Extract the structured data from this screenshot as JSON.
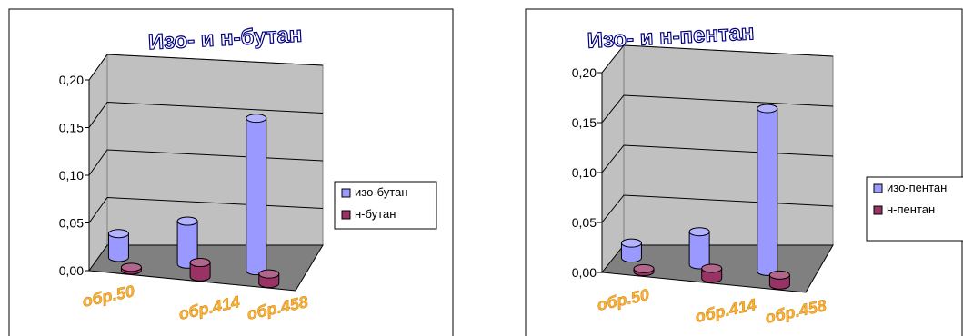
{
  "chart_data": [
    {
      "type": "bar",
      "title": "Изо- и н-бутан",
      "categories": [
        "обр.50",
        "обр.414",
        "обр.458"
      ],
      "series": [
        {
          "name": "изо-бутан",
          "values": [
            0.025,
            0.045,
            0.16
          ],
          "color": "#9999FF"
        },
        {
          "name": "н-бутан",
          "values": [
            0.003,
            0.015,
            0.01
          ],
          "color": "#993366"
        }
      ],
      "y_ticks": [
        "0,00",
        "0,05",
        "0,10",
        "0,15",
        "0,20"
      ],
      "ylim": [
        0,
        0.2
      ],
      "grid": true,
      "legend_position": "right",
      "three_d": true
    },
    {
      "type": "bar",
      "title": "Изо- и н-пентан",
      "categories": [
        "обр.50",
        "обр.414",
        "обр.458"
      ],
      "series": [
        {
          "name": "изо-пентан",
          "values": [
            0.015,
            0.033,
            0.163
          ],
          "color": "#9999FF"
        },
        {
          "name": "н-пентан",
          "values": [
            0.003,
            0.01,
            0.01
          ],
          "color": "#993366"
        }
      ],
      "y_ticks": [
        "0,00",
        "0,05",
        "0,10",
        "0,15",
        "0,20"
      ],
      "ylim": [
        0,
        0.2
      ],
      "grid": true,
      "legend_position": "right",
      "three_d": true
    }
  ],
  "colors": {
    "wall": "#C0C0C0",
    "floor": "#808080",
    "category_label": "#FFB033",
    "title_text": "#000080"
  }
}
